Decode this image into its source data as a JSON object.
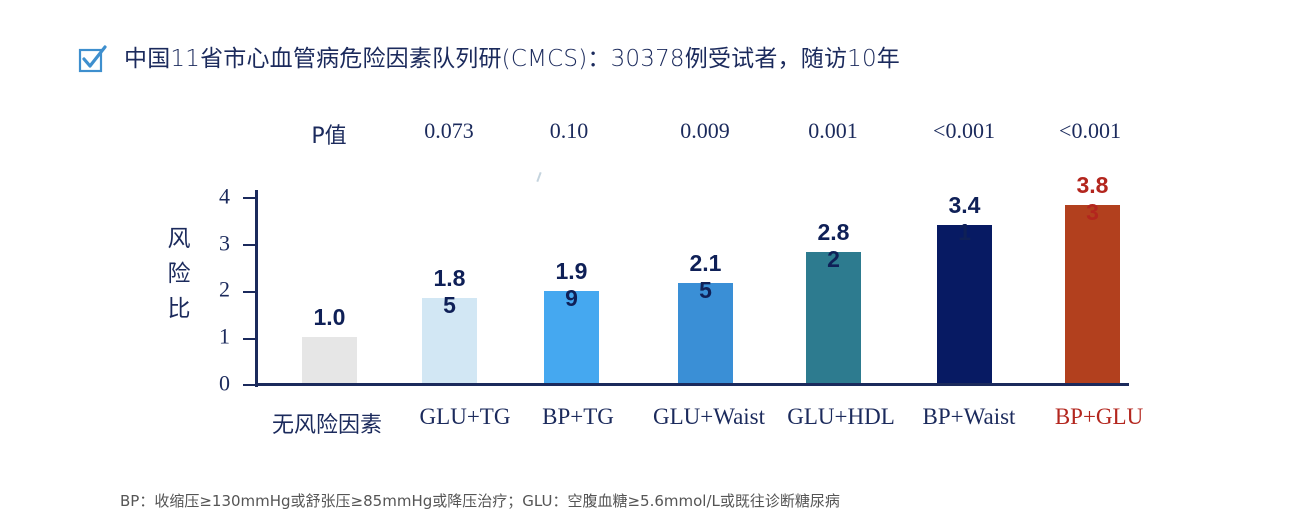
{
  "header": {
    "icon": "checkbox-checked-icon",
    "title": "中国11省市心血管病危险因素队列研(CMCS)：30378例受试者，随访10年"
  },
  "pvalues": {
    "label": "P值",
    "values": [
      "0.073",
      "0.10",
      "0.009",
      "0.001",
      "<0.001",
      "<0.001"
    ]
  },
  "footnote": "BP：收缩压≥130mmHg或舒张压≥85mmHg或降压治疗；GLU：空腹血糖≥5.6mmol/L或既往诊断糖尿病",
  "colors": {
    "axis": "#1b2a5c",
    "text": "#1b2a5c",
    "highlight": "#b3261e"
  },
  "chart_data": {
    "type": "bar",
    "title": "中国11省市心血管病危险因素队列研(CMCS)：30378例受试者，随访10年",
    "xlabel": "",
    "ylabel": "风险比",
    "ylim": [
      0,
      4
    ],
    "yticks": [
      0,
      1,
      2,
      3,
      4
    ],
    "grid": false,
    "legend": null,
    "categories": [
      "无风险因素",
      "GLU+TG",
      "BP+TG",
      "GLU+Waist",
      "GLU+HDL",
      "BP+Waist",
      "BP+GLU"
    ],
    "values": [
      1.0,
      1.85,
      1.99,
      2.15,
      2.82,
      3.41,
      3.83
    ],
    "value_labels": [
      [
        "1.0",
        ""
      ],
      [
        "1.8",
        "5"
      ],
      [
        "1.9",
        "9"
      ],
      [
        "2.1",
        "5"
      ],
      [
        "2.8",
        "2"
      ],
      [
        "3.4",
        "1"
      ],
      [
        "3.8",
        "3"
      ]
    ],
    "bar_colors": [
      "#e6e6e6",
      "#d2e7f4",
      "#45a8f0",
      "#3a8fd6",
      "#2d7b8f",
      "#071a63",
      "#b2401e"
    ],
    "label_colors": [
      "#0f2057",
      "#0f2057",
      "#0f2057",
      "#0f2057",
      "#0f2057",
      "#0f2057",
      "#b3261e"
    ],
    "category_colors": [
      "#1b2a5c",
      "#1b2a5c",
      "#1b2a5c",
      "#1b2a5c",
      "#1b2a5c",
      "#1b2a5c",
      "#b3261e"
    ],
    "annotations": {
      "p_values_label": "P值",
      "p_values": [
        "0.073",
        "0.10",
        "0.009",
        "0.001",
        "<0.001",
        "<0.001"
      ]
    }
  }
}
